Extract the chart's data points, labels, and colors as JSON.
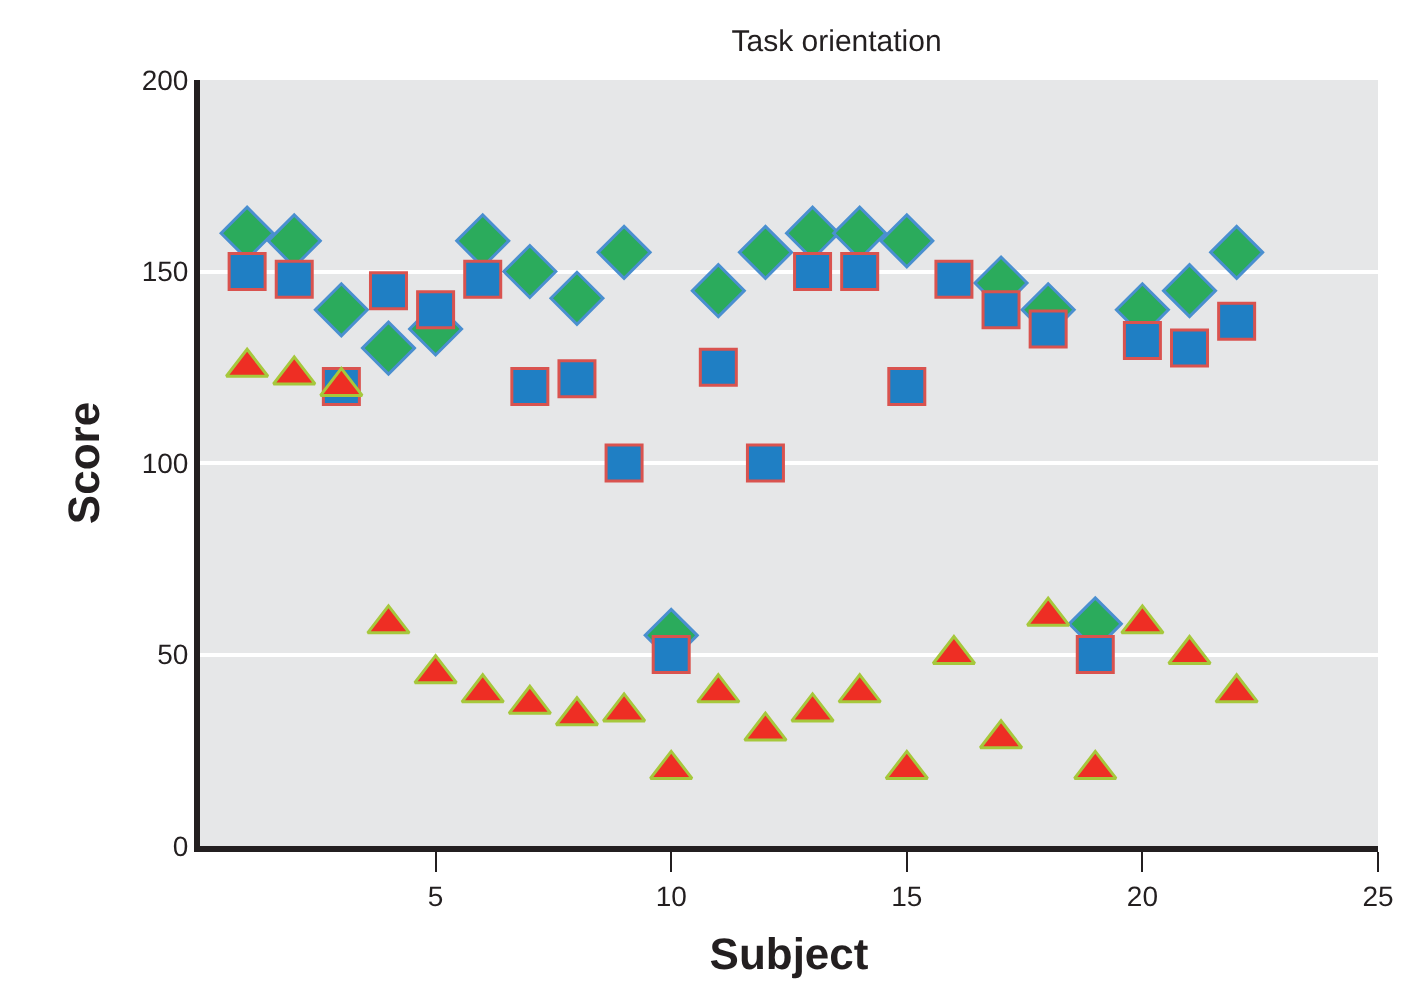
{
  "chart_data": {
    "type": "scatter",
    "title": "Task orientation",
    "xlabel": "Subject",
    "ylabel": "Score",
    "x": [
      1,
      2,
      3,
      4,
      5,
      6,
      7,
      8,
      9,
      10,
      11,
      12,
      13,
      14,
      15,
      16,
      17,
      18,
      19,
      20,
      21,
      22
    ],
    "series": [
      {
        "color": "#2bab5c",
        "marker": "diamond",
        "values": [
          160,
          158,
          140,
          130,
          135,
          158,
          150,
          143,
          155,
          55,
          145,
          155,
          160,
          160,
          158,
          null,
          147,
          140,
          58,
          140,
          145,
          155
        ]
      },
      {
        "color": "#1f7fc4",
        "marker": "square",
        "values": [
          150,
          148,
          120,
          145,
          140,
          148,
          120,
          122,
          100,
          50,
          125,
          100,
          150,
          150,
          120,
          148,
          140,
          135,
          50,
          132,
          130,
          137
        ]
      },
      {
        "color": "#ee2e24",
        "marker": "triangle",
        "values": [
          125,
          123,
          120,
          58,
          45,
          40,
          37,
          34,
          35,
          20,
          40,
          30,
          35,
          40,
          20,
          50,
          28,
          60,
          20,
          58,
          50,
          40
        ]
      }
    ],
    "xlim": [
      0,
      25
    ],
    "xticks": [
      5,
      10,
      15,
      20,
      25
    ],
    "ylim": [
      0,
      200
    ],
    "yticks": [
      0,
      50,
      100,
      150,
      200
    ],
    "grid": "y"
  }
}
